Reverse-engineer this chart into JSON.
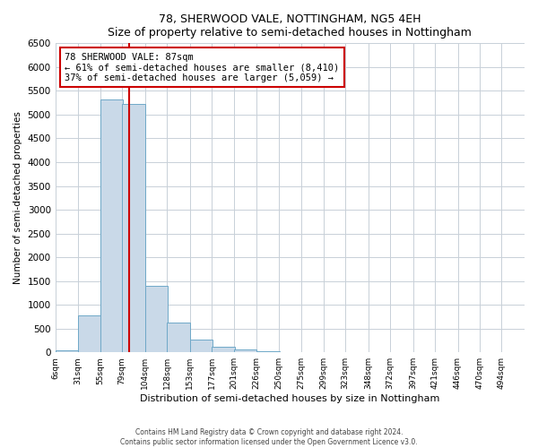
{
  "title": "78, SHERWOOD VALE, NOTTINGHAM, NG5 4EH",
  "subtitle": "Size of property relative to semi-detached houses in Nottingham",
  "xlabel": "Distribution of semi-detached houses by size in Nottingham",
  "ylabel": "Number of semi-detached properties",
  "bar_left_edges": [
    6,
    31,
    55,
    79,
    104,
    128,
    153,
    177,
    201,
    226,
    250,
    275,
    299,
    323,
    348,
    372,
    397,
    421,
    446,
    470
  ],
  "bar_heights": [
    50,
    780,
    5320,
    5220,
    1400,
    620,
    270,
    110,
    60,
    30,
    10,
    5,
    0,
    0,
    0,
    0,
    0,
    0,
    0,
    5
  ],
  "bin_width": 25,
  "bar_color": "#c9d9e8",
  "bar_edge_color": "#6fa8c8",
  "property_value": 87,
  "red_line_color": "#cc0000",
  "ylim": [
    0,
    6500
  ],
  "yticks": [
    0,
    500,
    1000,
    1500,
    2000,
    2500,
    3000,
    3500,
    4000,
    4500,
    5000,
    5500,
    6000,
    6500
  ],
  "x_tick_labels": [
    "6sqm",
    "31sqm",
    "55sqm",
    "79sqm",
    "104sqm",
    "128sqm",
    "153sqm",
    "177sqm",
    "201sqm",
    "226sqm",
    "250sqm",
    "275sqm",
    "299sqm",
    "323sqm",
    "348sqm",
    "372sqm",
    "397sqm",
    "421sqm",
    "446sqm",
    "470sqm",
    "494sqm"
  ],
  "annotation_title": "78 SHERWOOD VALE: 87sqm",
  "annotation_line1": "← 61% of semi-detached houses are smaller (8,410)",
  "annotation_line2": "37% of semi-detached houses are larger (5,059) →",
  "annotation_box_color": "#ffffff",
  "annotation_box_edge": "#cc0000",
  "footer_line1": "Contains HM Land Registry data © Crown copyright and database right 2024.",
  "footer_line2": "Contains public sector information licensed under the Open Government Licence v3.0.",
  "grid_color": "#c8d0d8",
  "background_color": "#ffffff",
  "figsize": [
    6.0,
    5.0
  ],
  "dpi": 100
}
